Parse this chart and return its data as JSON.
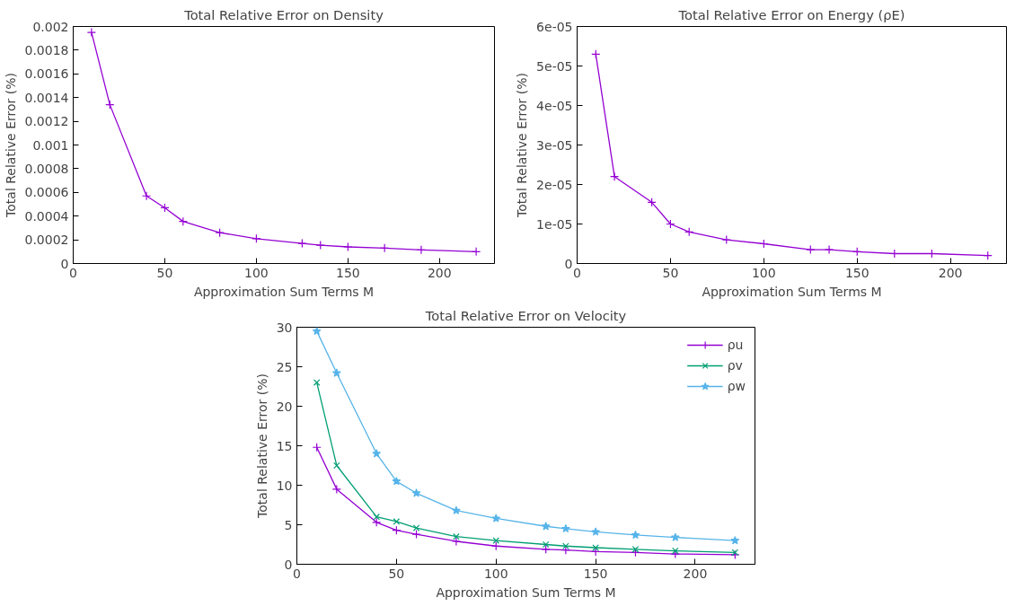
{
  "chart_data": [
    {
      "type": "line",
      "title": "Total Relative Error on Density",
      "xlabel": "Approximation Sum Terms M",
      "ylabel": "Total Relative Error (%)",
      "x": [
        10,
        20,
        40,
        50,
        60,
        80,
        100,
        125,
        135,
        150,
        170,
        190,
        220
      ],
      "series": [
        {
          "color": "#9400d3",
          "marker": "cross",
          "values": [
            0.00195,
            0.00134,
            0.00057,
            0.00047,
            0.000355,
            0.00026,
            0.00021,
            0.00017,
            0.000155,
            0.00014,
            0.00013,
            0.000115,
            0.0001
          ]
        }
      ],
      "xlim": [
        0,
        230
      ],
      "xticks": [
        0,
        50,
        100,
        150,
        200
      ],
      "ylim": [
        0,
        0.002
      ],
      "yticks": [
        0,
        0.0002,
        0.0004,
        0.0006,
        0.0008,
        0.001,
        0.0012,
        0.0014,
        0.0016,
        0.0018,
        0.002
      ],
      "grid": false,
      "legend": false
    },
    {
      "type": "line",
      "title": "Total Relative Error on Energy (ρE)",
      "xlabel": "Approximation Sum Terms M",
      "ylabel": "Total Relative Error (%)",
      "x": [
        10,
        20,
        40,
        50,
        60,
        80,
        100,
        125,
        135,
        150,
        170,
        190,
        220
      ],
      "series": [
        {
          "color": "#9400d3",
          "marker": "cross",
          "values": [
            5.3e-05,
            2.2e-05,
            1.55e-05,
            1e-05,
            8e-06,
            6e-06,
            5e-06,
            3.5e-06,
            3.5e-06,
            3e-06,
            2.5e-06,
            2.5e-06,
            2e-06
          ]
        }
      ],
      "xlim": [
        0,
        230
      ],
      "xticks": [
        0,
        50,
        100,
        150,
        200
      ],
      "ylim": [
        0,
        6e-05
      ],
      "yticks": [
        0,
        {
          "value": 1e-05,
          "label": "1e-05"
        },
        {
          "value": 2e-05,
          "label": "2e-05"
        },
        {
          "value": 3e-05,
          "label": "3e-05"
        },
        {
          "value": 4e-05,
          "label": "4e-05"
        },
        {
          "value": 5e-05,
          "label": "5e-05"
        },
        {
          "value": 6e-05,
          "label": "6e-05"
        }
      ],
      "grid": false,
      "legend": false
    },
    {
      "type": "line",
      "title": "Total Relative Error on Velocity",
      "xlabel": "Approximation Sum Terms M",
      "ylabel": "Total Relative Error (%)",
      "x": [
        10,
        20,
        40,
        50,
        60,
        80,
        100,
        125,
        135,
        150,
        170,
        190,
        220
      ],
      "series": [
        {
          "name": "ρu",
          "color": "#9400d3",
          "marker": "cross",
          "values": [
            14.8,
            9.5,
            5.3,
            4.3,
            3.8,
            2.9,
            2.3,
            1.9,
            1.8,
            1.6,
            1.5,
            1.3,
            1.2
          ]
        },
        {
          "name": "ρv",
          "color": "#009e73",
          "marker": "x",
          "values": [
            23,
            12.5,
            6,
            5.4,
            4.6,
            3.5,
            3,
            2.5,
            2.3,
            2.1,
            1.9,
            1.7,
            1.5
          ]
        },
        {
          "name": "ρw",
          "color": "#56b4e9",
          "marker": "star",
          "values": [
            29.5,
            24.2,
            14,
            10.5,
            9,
            6.8,
            5.8,
            4.8,
            4.5,
            4.1,
            3.7,
            3.4,
            3
          ]
        }
      ],
      "xlim": [
        0,
        230
      ],
      "xticks": [
        0,
        50,
        100,
        150,
        200
      ],
      "ylim": [
        0,
        30
      ],
      "yticks": [
        0,
        5,
        10,
        15,
        20,
        25,
        30
      ],
      "grid": false,
      "legend": "top right"
    }
  ]
}
